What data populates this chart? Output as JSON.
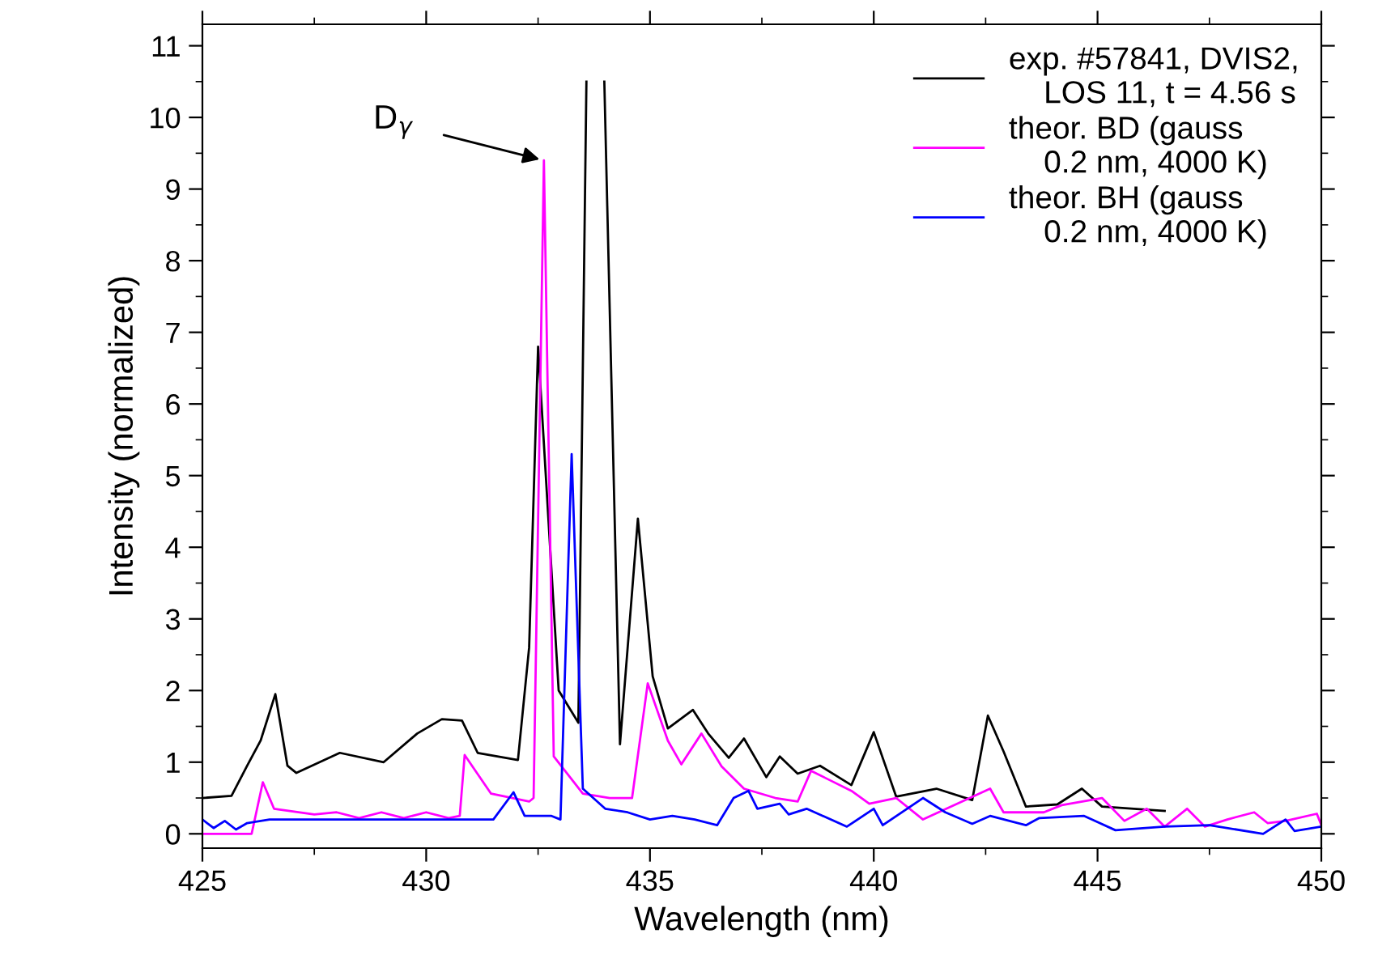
{
  "chart_data": {
    "type": "line",
    "xlabel": "Wavelength (nm)",
    "ylabel": "Intensity (normalized)",
    "xlim": [
      425,
      450
    ],
    "ylim": [
      -0.2,
      11.3
    ],
    "xticks": [
      425,
      430,
      435,
      440,
      445,
      450
    ],
    "yticks": [
      0,
      1,
      2,
      3,
      4,
      5,
      6,
      7,
      8,
      9,
      10,
      11
    ],
    "grid": false,
    "legend": "top right",
    "marker": "none",
    "line_style": "solid",
    "annotations": [
      {
        "text": "D$_{γ}$",
        "x": 432.63,
        "y": 9.4
      }
    ],
    "series": [
      {
        "name": "exp. #57841, DVIS2,\n    LOS 11, t = 4.56 s",
        "color": "#000000",
        "x": [
          425.0,
          425.65,
          426.0,
          426.3,
          426.63,
          426.9,
          427.1,
          428.07,
          429.05,
          429.8,
          430.35,
          430.8,
          431.15,
          432.05,
          432.3,
          432.5,
          432.96,
          433.4,
          433.58,
          433.8,
          433.98,
          434.33,
          434.73,
          435.06,
          435.4,
          435.96,
          436.3,
          436.76,
          437.1,
          437.6,
          437.9,
          438.3,
          438.8,
          439.5,
          440.0,
          440.5,
          441.4,
          442.2,
          442.55,
          442.9,
          443.4,
          444.1,
          444.65,
          445.1,
          446.5
        ],
        "values": [
          0.5,
          0.53,
          0.95,
          1.3,
          1.95,
          0.95,
          0.85,
          1.13,
          1.0,
          1.4,
          1.6,
          1.58,
          1.13,
          1.03,
          2.6,
          6.8,
          2.0,
          1.55,
          10.5,
          null,
          10.5,
          1.25,
          4.4,
          2.2,
          1.47,
          1.73,
          1.4,
          1.06,
          1.33,
          0.79,
          1.08,
          0.84,
          0.95,
          0.68,
          1.42,
          0.52,
          0.63,
          0.47,
          1.65,
          1.15,
          0.38,
          0.41,
          0.63,
          0.38,
          0.32
        ]
      },
      {
        "name": "theor. BD (gauss\n    0.2 nm, 4000 K)",
        "color": "#ff00ff",
        "x": [
          425.0,
          426.1,
          426.35,
          426.6,
          427.5,
          428.0,
          428.5,
          429.0,
          429.5,
          430.0,
          430.5,
          430.75,
          430.86,
          431.45,
          432.3,
          432.4,
          432.63,
          432.85,
          433.5,
          434.1,
          434.6,
          434.95,
          435.4,
          435.7,
          436.15,
          436.6,
          437.1,
          437.8,
          438.3,
          438.6,
          438.95,
          439.5,
          439.9,
          440.5,
          441.1,
          442.6,
          442.9,
          443.8,
          444.2,
          445.1,
          445.6,
          446.1,
          446.5,
          447.0,
          447.4,
          447.9,
          448.5,
          448.8,
          449.2,
          449.9,
          450.0
        ],
        "values": [
          0.0,
          0.0,
          0.72,
          0.35,
          0.27,
          0.3,
          0.22,
          0.3,
          0.22,
          0.3,
          0.22,
          0.25,
          1.1,
          0.56,
          0.45,
          0.5,
          9.4,
          1.08,
          0.56,
          0.5,
          0.5,
          2.1,
          1.3,
          0.97,
          1.4,
          0.94,
          0.63,
          0.5,
          0.45,
          0.88,
          0.77,
          0.6,
          0.42,
          0.5,
          0.2,
          0.63,
          0.3,
          0.3,
          0.4,
          0.5,
          0.18,
          0.35,
          0.1,
          0.35,
          0.1,
          0.2,
          0.3,
          0.15,
          0.18,
          0.28,
          0.12
        ]
      },
      {
        "name": "theor. BH (gauss\n    0.2 nm, 4000 K)",
        "color": "#0000ff",
        "x": [
          425.0,
          425.25,
          425.5,
          425.75,
          426.0,
          426.5,
          427.0,
          427.5,
          428.0,
          428.5,
          429.0,
          429.5,
          430.0,
          430.5,
          431.0,
          431.5,
          431.95,
          432.2,
          432.8,
          433.0,
          433.25,
          433.5,
          434.0,
          434.5,
          435.0,
          435.5,
          436.0,
          436.5,
          436.87,
          437.2,
          437.4,
          437.9,
          438.1,
          438.5,
          439.4,
          440.0,
          440.2,
          441.1,
          441.6,
          442.2,
          442.6,
          443.4,
          443.7,
          444.7,
          445.4,
          446.5,
          447.5,
          448.7,
          449.2,
          449.4,
          450.0
        ],
        "values": [
          0.2,
          0.08,
          0.18,
          0.06,
          0.15,
          0.2,
          0.2,
          0.2,
          0.2,
          0.2,
          0.2,
          0.2,
          0.2,
          0.2,
          0.2,
          0.2,
          0.58,
          0.25,
          0.25,
          0.2,
          5.3,
          0.63,
          0.35,
          0.3,
          0.2,
          0.25,
          0.2,
          0.12,
          0.5,
          0.6,
          0.35,
          0.42,
          0.27,
          0.35,
          0.1,
          0.35,
          0.12,
          0.5,
          0.3,
          0.14,
          0.25,
          0.12,
          0.22,
          0.25,
          0.05,
          0.1,
          0.12,
          0.0,
          0.2,
          0.04,
          0.1
        ]
      }
    ]
  }
}
